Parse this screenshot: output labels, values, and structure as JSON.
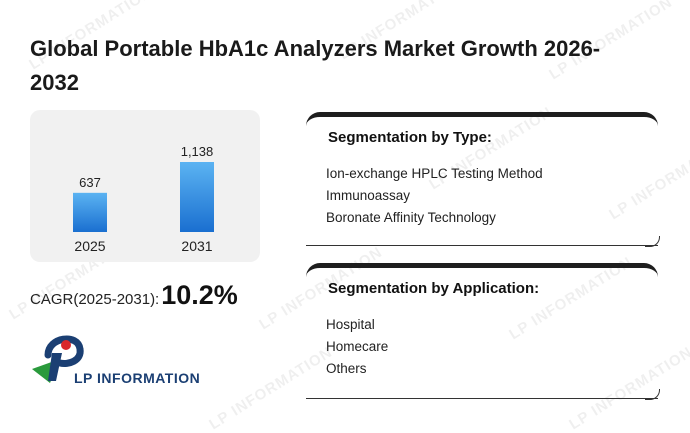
{
  "title": "Global Portable HbA1c Analyzers Market Growth 2026-2032",
  "chart_data": {
    "type": "bar",
    "categories": [
      "2025",
      "2031"
    ],
    "values": [
      637,
      1138
    ],
    "value_labels": [
      "637",
      "1,138"
    ],
    "title": "",
    "xlabel": "",
    "ylabel": "",
    "ylim": [
      0,
      1200
    ],
    "grid": false,
    "bar_color_top": "#5bb3f2",
    "bar_color_bottom": "#1a6fd0"
  },
  "cagr": {
    "label": "CAGR(2025-2031):",
    "value": "10.2%"
  },
  "segments": {
    "type": {
      "title": "Segmentation by Type:",
      "items": [
        "Ion-exchange HPLC Testing Method",
        "Immunoassay",
        "Boronate Affinity Technology"
      ]
    },
    "application": {
      "title": "Segmentation by Application:",
      "items": [
        "Hospital",
        "Homecare",
        "Others"
      ]
    }
  },
  "logo": {
    "text": "LP INFORMATION",
    "colors": {
      "green": "#2a9a3c",
      "blue": "#1b3f73",
      "red": "#d9262b"
    }
  },
  "watermark": "LP INFORMATION"
}
